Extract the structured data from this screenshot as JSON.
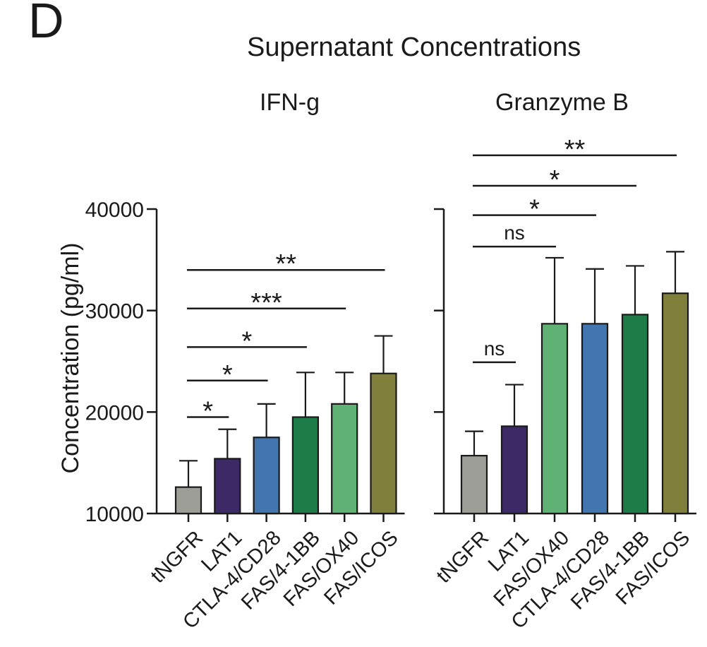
{
  "panel_letter": "D",
  "title": "Supernatant Concentrations",
  "ylabel": "Concentration (pg/ml)",
  "colors": {
    "tNGFR": "#9d9e98",
    "LAT1": "#3c2a67",
    "CTLA-4/CD28": "#4375ae",
    "FAS/4-1BB": "#1e7c48",
    "FAS/OX40": "#5fb273",
    "FAS/ICOS": "#807f3c"
  },
  "chart_data": [
    {
      "type": "bar",
      "subtitle": "IFN-g",
      "ylim": [
        10000,
        40000
      ],
      "yticks": [
        "10000",
        "20000",
        "30000",
        "40000"
      ],
      "yticks_values": [
        10000,
        20000,
        30000,
        40000
      ],
      "categories": [
        "tNGFR",
        "LAT1",
        "CTLA-4/CD28",
        "FAS/4-1BB",
        "FAS/OX40",
        "FAS/ICOS"
      ],
      "values": [
        12600,
        15400,
        17500,
        19500,
        20800,
        23800
      ],
      "errors": [
        2600,
        2900,
        3300,
        4400,
        3100,
        3700
      ],
      "significance": [
        {
          "from": 0,
          "to": 1,
          "label": "*",
          "y": 19500
        },
        {
          "from": 0,
          "to": 2,
          "label": "*",
          "y": 23100
        },
        {
          "from": 0,
          "to": 3,
          "label": "*",
          "y": 26400
        },
        {
          "from": 0,
          "to": 4,
          "label": "***",
          "y": 30200
        },
        {
          "from": 0,
          "to": 5,
          "label": "**",
          "y": 34000
        }
      ]
    },
    {
      "type": "bar",
      "subtitle": "Granzyme B",
      "ylim": [
        10000,
        40000
      ],
      "yticks_values": [
        10000,
        20000,
        30000,
        40000
      ],
      "categories": [
        "tNGFR",
        "LAT1",
        "FAS/OX40",
        "CTLA-4/CD28",
        "FAS/4-1BB",
        "FAS/ICOS"
      ],
      "values": [
        15700,
        18600,
        28700,
        28700,
        29600,
        31700
      ],
      "errors": [
        2400,
        4100,
        6500,
        5400,
        4800,
        4100
      ],
      "significance": [
        {
          "from": 0,
          "to": 1,
          "label": "ns",
          "y": 24900
        },
        {
          "from": 0,
          "to": 2,
          "label": "ns",
          "y": 36300
        },
        {
          "from": 0,
          "to": 3,
          "label": "*",
          "y": 39400
        },
        {
          "from": 0,
          "to": 4,
          "label": "*",
          "y": 42300
        },
        {
          "from": 0,
          "to": 5,
          "label": "**",
          "y": 45300
        }
      ]
    }
  ]
}
